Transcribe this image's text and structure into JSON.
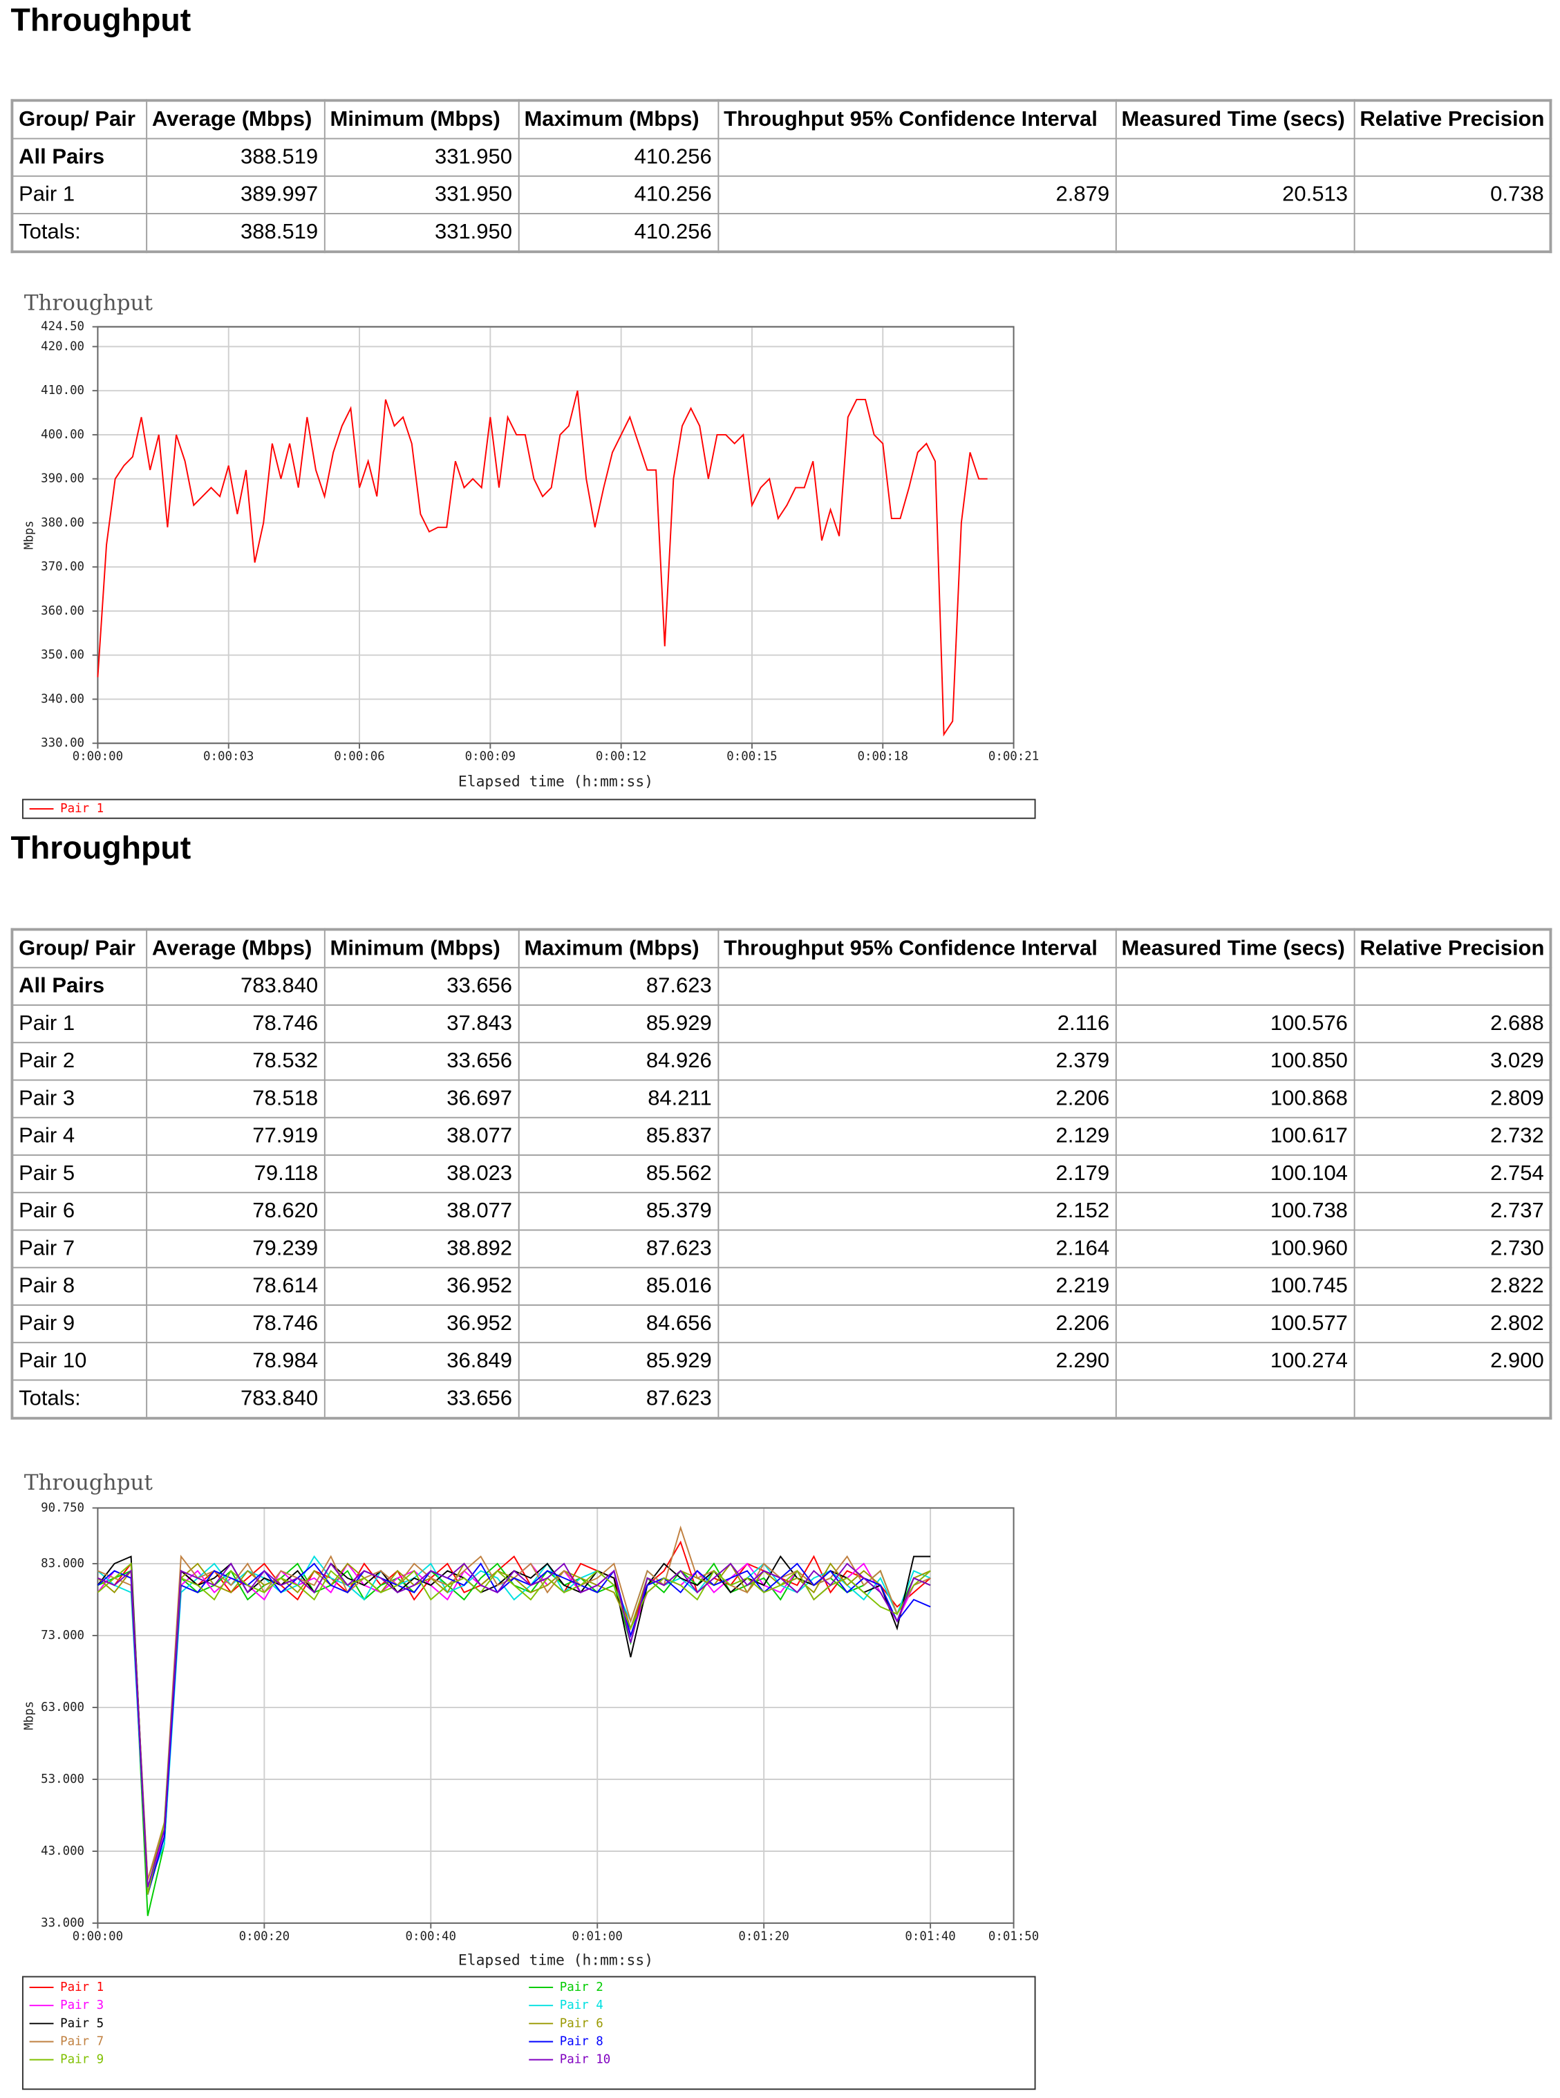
{
  "sections": [
    {
      "heading": "Throughput",
      "table": {
        "header": [
          "Group/ Pair",
          "Average (Mbps)",
          "Minimum (Mbps)",
          "Maximum (Mbps)",
          "Throughput 95% Confidence Interval",
          "Measured Time (secs)",
          "Relative Precision"
        ],
        "rows": [
          [
            "All Pairs",
            "388.519",
            "331.950",
            "410.256",
            null,
            null,
            null
          ],
          [
            "Pair 1",
            "389.997",
            "331.950",
            "410.256",
            "2.879",
            "20.513",
            "0.738"
          ],
          [
            "Totals:",
            "388.519",
            "331.950",
            "410.256",
            null,
            null,
            null
          ]
        ]
      }
    },
    {
      "heading": "Throughput",
      "table": {
        "header": [
          "Group/ Pair",
          "Average (Mbps)",
          "Minimum (Mbps)",
          "Maximum (Mbps)",
          "Throughput 95% Confidence Interval",
          "Measured Time (secs)",
          "Relative Precision"
        ],
        "rows": [
          [
            "All Pairs",
            "783.840",
            "33.656",
            "87.623",
            null,
            null,
            null
          ],
          [
            "Pair 1",
            "78.746",
            "37.843",
            "85.929",
            "2.116",
            "100.576",
            "2.688"
          ],
          [
            "Pair 2",
            "78.532",
            "33.656",
            "84.926",
            "2.379",
            "100.850",
            "3.029"
          ],
          [
            "Pair 3",
            "78.518",
            "36.697",
            "84.211",
            "2.206",
            "100.868",
            "2.809"
          ],
          [
            "Pair 4",
            "77.919",
            "38.077",
            "85.837",
            "2.129",
            "100.617",
            "2.732"
          ],
          [
            "Pair 5",
            "79.118",
            "38.023",
            "85.562",
            "2.179",
            "100.104",
            "2.754"
          ],
          [
            "Pair 6",
            "78.620",
            "38.077",
            "85.379",
            "2.152",
            "100.738",
            "2.737"
          ],
          [
            "Pair 7",
            "79.239",
            "38.892",
            "87.623",
            "2.164",
            "100.960",
            "2.730"
          ],
          [
            "Pair 8",
            "78.614",
            "36.952",
            "85.016",
            "2.219",
            "100.745",
            "2.822"
          ],
          [
            "Pair 9",
            "78.746",
            "36.952",
            "84.656",
            "2.206",
            "100.577",
            "2.802"
          ],
          [
            "Pair 10",
            "78.984",
            "36.849",
            "85.929",
            "2.290",
            "100.274",
            "2.900"
          ],
          [
            "Totals:",
            "783.840",
            "33.656",
            "87.623",
            null,
            null,
            null
          ]
        ]
      }
    }
  ],
  "chart_data": [
    {
      "type": "line",
      "title": "Throughput",
      "y_label": "Mbps",
      "x_label": "Elapsed time (h:mm:ss)",
      "grid": true,
      "xlim": [
        0,
        21
      ],
      "xticks": [
        {
          "value": 0,
          "label": "0:00:00"
        },
        {
          "value": 3,
          "label": "0:00:03"
        },
        {
          "value": 6,
          "label": "0:00:06"
        },
        {
          "value": 9,
          "label": "0:00:09"
        },
        {
          "value": 12,
          "label": "0:00:12"
        },
        {
          "value": 15,
          "label": "0:00:15"
        },
        {
          "value": 18,
          "label": "0:00:18"
        },
        {
          "value": 21,
          "label": "0:00:21"
        }
      ],
      "ylim": [
        330,
        424.5
      ],
      "yticks": [
        {
          "value": 330,
          "label": "330.00"
        },
        {
          "value": 340,
          "label": "340.00"
        },
        {
          "value": 350,
          "label": "350.00"
        },
        {
          "value": 360,
          "label": "360.00"
        },
        {
          "value": 370,
          "label": "370.00"
        },
        {
          "value": 380,
          "label": "380.00"
        },
        {
          "value": 390,
          "label": "390.00"
        },
        {
          "value": 400,
          "label": "400.00"
        },
        {
          "value": 410,
          "label": "410.00"
        },
        {
          "value": 420,
          "label": "420.00"
        },
        {
          "value": 424.5,
          "label": "424.50"
        }
      ],
      "x": [
        0,
        0.2,
        0.4,
        0.6,
        0.8,
        1,
        1.2,
        1.4,
        1.6,
        1.8,
        2,
        2.2,
        2.4,
        2.6,
        2.8,
        3,
        3.2,
        3.4,
        3.6,
        3.8,
        4,
        4.2,
        4.4,
        4.6,
        4.8,
        5,
        5.2,
        5.4,
        5.6,
        5.8,
        6,
        6.2,
        6.4,
        6.6,
        6.8,
        7,
        7.2,
        7.4,
        7.6,
        7.8,
        8,
        8.2,
        8.4,
        8.6,
        8.8,
        9,
        9.2,
        9.4,
        9.6,
        9.8,
        10,
        10.2,
        10.4,
        10.6,
        10.8,
        11,
        11.2,
        11.4,
        11.6,
        11.8,
        12,
        12.2,
        12.4,
        12.6,
        12.8,
        13,
        13.2,
        13.4,
        13.6,
        13.8,
        14,
        14.2,
        14.4,
        14.6,
        14.8,
        15,
        15.2,
        15.4,
        15.6,
        15.8,
        16,
        16.2,
        16.4,
        16.6,
        16.8,
        17,
        17.2,
        17.4,
        17.6,
        17.8,
        18,
        18.2,
        18.4,
        18.6,
        18.8,
        19,
        19.2,
        19.4,
        19.6,
        19.8,
        20,
        20.2,
        20.4
      ],
      "series": [
        {
          "name": "Pair 1",
          "color": "#ff0000",
          "values": [
            345,
            375,
            390,
            393,
            395,
            404,
            392,
            400,
            379,
            400,
            394,
            384,
            386,
            388,
            386,
            393,
            382,
            392,
            371,
            380,
            398,
            390,
            398,
            388,
            404,
            392,
            386,
            396,
            402,
            406,
            388,
            394,
            386,
            408,
            402,
            404,
            398,
            382,
            378,
            379,
            379,
            394,
            388,
            390,
            388,
            404,
            388,
            404,
            400,
            400,
            390,
            386,
            388,
            400,
            402,
            410,
            390,
            379,
            388,
            396,
            400,
            404,
            398,
            392,
            392,
            352,
            390,
            402,
            406,
            402,
            390,
            400,
            400,
            398,
            400,
            384,
            388,
            390,
            381,
            384,
            388,
            388,
            394,
            376,
            383,
            377,
            404,
            408,
            408,
            400,
            398,
            381,
            381,
            388,
            396,
            398,
            394,
            332,
            335,
            380,
            396,
            390,
            390
          ]
        }
      ]
    },
    {
      "type": "line",
      "title": "Throughput",
      "y_label": "Mbps",
      "x_label": "Elapsed time (h:mm:ss)",
      "grid": true,
      "xlim": [
        0,
        110
      ],
      "xticks": [
        {
          "value": 0,
          "label": "0:00:00"
        },
        {
          "value": 20,
          "label": "0:00:20"
        },
        {
          "value": 40,
          "label": "0:00:40"
        },
        {
          "value": 60,
          "label": "0:01:00"
        },
        {
          "value": 80,
          "label": "0:01:20"
        },
        {
          "value": 100,
          "label": "0:01:40"
        },
        {
          "value": 110,
          "label": "0:01:50"
        }
      ],
      "ylim": [
        33,
        90.75
      ],
      "yticks": [
        {
          "value": 33,
          "label": "33.000"
        },
        {
          "value": 43,
          "label": "43.000"
        },
        {
          "value": 53,
          "label": "53.000"
        },
        {
          "value": 63,
          "label": "63.000"
        },
        {
          "value": 73,
          "label": "73.000"
        },
        {
          "value": 83,
          "label": "83.000"
        },
        {
          "value": 90.75,
          "label": "90.750"
        }
      ],
      "x": [
        0,
        2,
        4,
        6,
        8,
        10,
        12,
        14,
        16,
        18,
        20,
        22,
        24,
        26,
        28,
        30,
        32,
        34,
        36,
        38,
        40,
        42,
        44,
        46,
        48,
        50,
        52,
        54,
        56,
        58,
        60,
        62,
        64,
        66,
        68,
        70,
        72,
        74,
        76,
        78,
        80,
        82,
        84,
        86,
        88,
        90,
        92,
        94,
        96,
        98,
        100
      ],
      "series": [
        {
          "name": "Pair 1",
          "color": "#ff0000",
          "values": [
            81,
            80,
            83,
            38,
            45,
            82,
            80,
            82,
            79,
            81,
            83,
            80,
            78,
            82,
            81,
            79,
            83,
            80,
            82,
            78,
            81,
            83,
            79,
            80,
            82,
            84,
            80,
            81,
            79,
            83,
            82,
            81,
            74,
            80,
            82,
            86,
            79,
            81,
            80,
            83,
            82,
            81,
            80,
            84,
            79,
            82,
            81,
            80,
            77,
            79,
            81
          ]
        },
        {
          "name": "Pair 2",
          "color": "#00cc00",
          "values": [
            80,
            81,
            82,
            34,
            44,
            81,
            79,
            80,
            82,
            78,
            80,
            81,
            83,
            79,
            80,
            82,
            78,
            80,
            81,
            79,
            82,
            80,
            78,
            81,
            83,
            80,
            79,
            82,
            80,
            81,
            79,
            80,
            72,
            81,
            79,
            82,
            80,
            83,
            79,
            80,
            81,
            78,
            82,
            80,
            81,
            79,
            80,
            82,
            76,
            81,
            80
          ]
        },
        {
          "name": "Pair 3",
          "color": "#ff00ff",
          "values": [
            79,
            82,
            81,
            37,
            46,
            80,
            82,
            79,
            81,
            80,
            78,
            82,
            80,
            81,
            79,
            83,
            80,
            79,
            81,
            82,
            80,
            78,
            82,
            80,
            79,
            81,
            83,
            80,
            82,
            79,
            80,
            82,
            73,
            79,
            81,
            80,
            82,
            79,
            81,
            83,
            80,
            79,
            82,
            78,
            80,
            81,
            83,
            79,
            75,
            80,
            82
          ]
        },
        {
          "name": "Pair 4",
          "color": "#00e0e0",
          "values": [
            82,
            80,
            79,
            38,
            44,
            79,
            81,
            83,
            80,
            82,
            81,
            79,
            80,
            84,
            81,
            80,
            78,
            82,
            80,
            81,
            83,
            79,
            80,
            82,
            81,
            78,
            80,
            83,
            79,
            81,
            82,
            80,
            75,
            82,
            80,
            81,
            79,
            82,
            80,
            81,
            83,
            80,
            79,
            81,
            82,
            80,
            78,
            81,
            76,
            82,
            81
          ]
        },
        {
          "name": "Pair 5",
          "color": "#000000",
          "values": [
            80,
            83,
            84,
            37,
            45,
            82,
            80,
            81,
            83,
            79,
            81,
            80,
            82,
            79,
            83,
            81,
            80,
            82,
            79,
            81,
            80,
            82,
            81,
            79,
            80,
            82,
            81,
            83,
            80,
            79,
            82,
            81,
            70,
            80,
            83,
            81,
            80,
            82,
            79,
            81,
            80,
            84,
            81,
            80,
            82,
            81,
            79,
            80,
            74,
            84,
            84
          ]
        },
        {
          "name": "Pair 6",
          "color": "#999900",
          "values": [
            81,
            79,
            82,
            39,
            46,
            81,
            83,
            80,
            79,
            82,
            80,
            81,
            79,
            82,
            80,
            83,
            81,
            79,
            82,
            80,
            81,
            79,
            83,
            80,
            82,
            81,
            79,
            80,
            82,
            81,
            80,
            79,
            74,
            81,
            80,
            82,
            81,
            80,
            83,
            79,
            82,
            80,
            81,
            79,
            83,
            80,
            82,
            80,
            75,
            81,
            82
          ]
        },
        {
          "name": "Pair 7",
          "color": "#c08040",
          "values": [
            82,
            81,
            80,
            39,
            47,
            84,
            81,
            82,
            80,
            83,
            79,
            82,
            81,
            80,
            84,
            79,
            81,
            82,
            80,
            83,
            81,
            80,
            82,
            84,
            80,
            81,
            83,
            79,
            82,
            80,
            81,
            83,
            75,
            82,
            80,
            88,
            81,
            82,
            80,
            79,
            83,
            81,
            82,
            80,
            81,
            84,
            80,
            82,
            76,
            80,
            81
          ]
        },
        {
          "name": "Pair 8",
          "color": "#0000ff",
          "values": [
            80,
            82,
            81,
            37,
            45,
            80,
            79,
            82,
            81,
            80,
            82,
            79,
            81,
            83,
            80,
            79,
            82,
            81,
            80,
            79,
            82,
            81,
            80,
            83,
            79,
            81,
            80,
            82,
            81,
            80,
            79,
            82,
            73,
            80,
            81,
            79,
            82,
            80,
            81,
            82,
            79,
            81,
            83,
            80,
            82,
            79,
            81,
            80,
            75,
            78,
            77
          ]
        },
        {
          "name": "Pair 9",
          "color": "#80c000",
          "values": [
            79,
            81,
            83,
            37,
            47,
            81,
            80,
            78,
            82,
            80,
            79,
            81,
            80,
            78,
            82,
            80,
            81,
            79,
            80,
            82,
            78,
            80,
            81,
            79,
            82,
            80,
            78,
            81,
            79,
            80,
            82,
            80,
            74,
            79,
            81,
            80,
            78,
            82,
            80,
            81,
            79,
            80,
            82,
            78,
            80,
            81,
            79,
            77,
            76,
            80,
            82
          ]
        },
        {
          "name": "Pair 10",
          "color": "#8000c0",
          "values": [
            81,
            80,
            82,
            38,
            46,
            82,
            81,
            80,
            83,
            79,
            82,
            80,
            81,
            79,
            83,
            80,
            82,
            81,
            79,
            80,
            82,
            81,
            83,
            80,
            79,
            82,
            80,
            81,
            83,
            79,
            80,
            82,
            72,
            81,
            80,
            82,
            79,
            81,
            83,
            80,
            82,
            81,
            79,
            82,
            80,
            83,
            81,
            79,
            75,
            81,
            80
          ]
        }
      ]
    }
  ]
}
